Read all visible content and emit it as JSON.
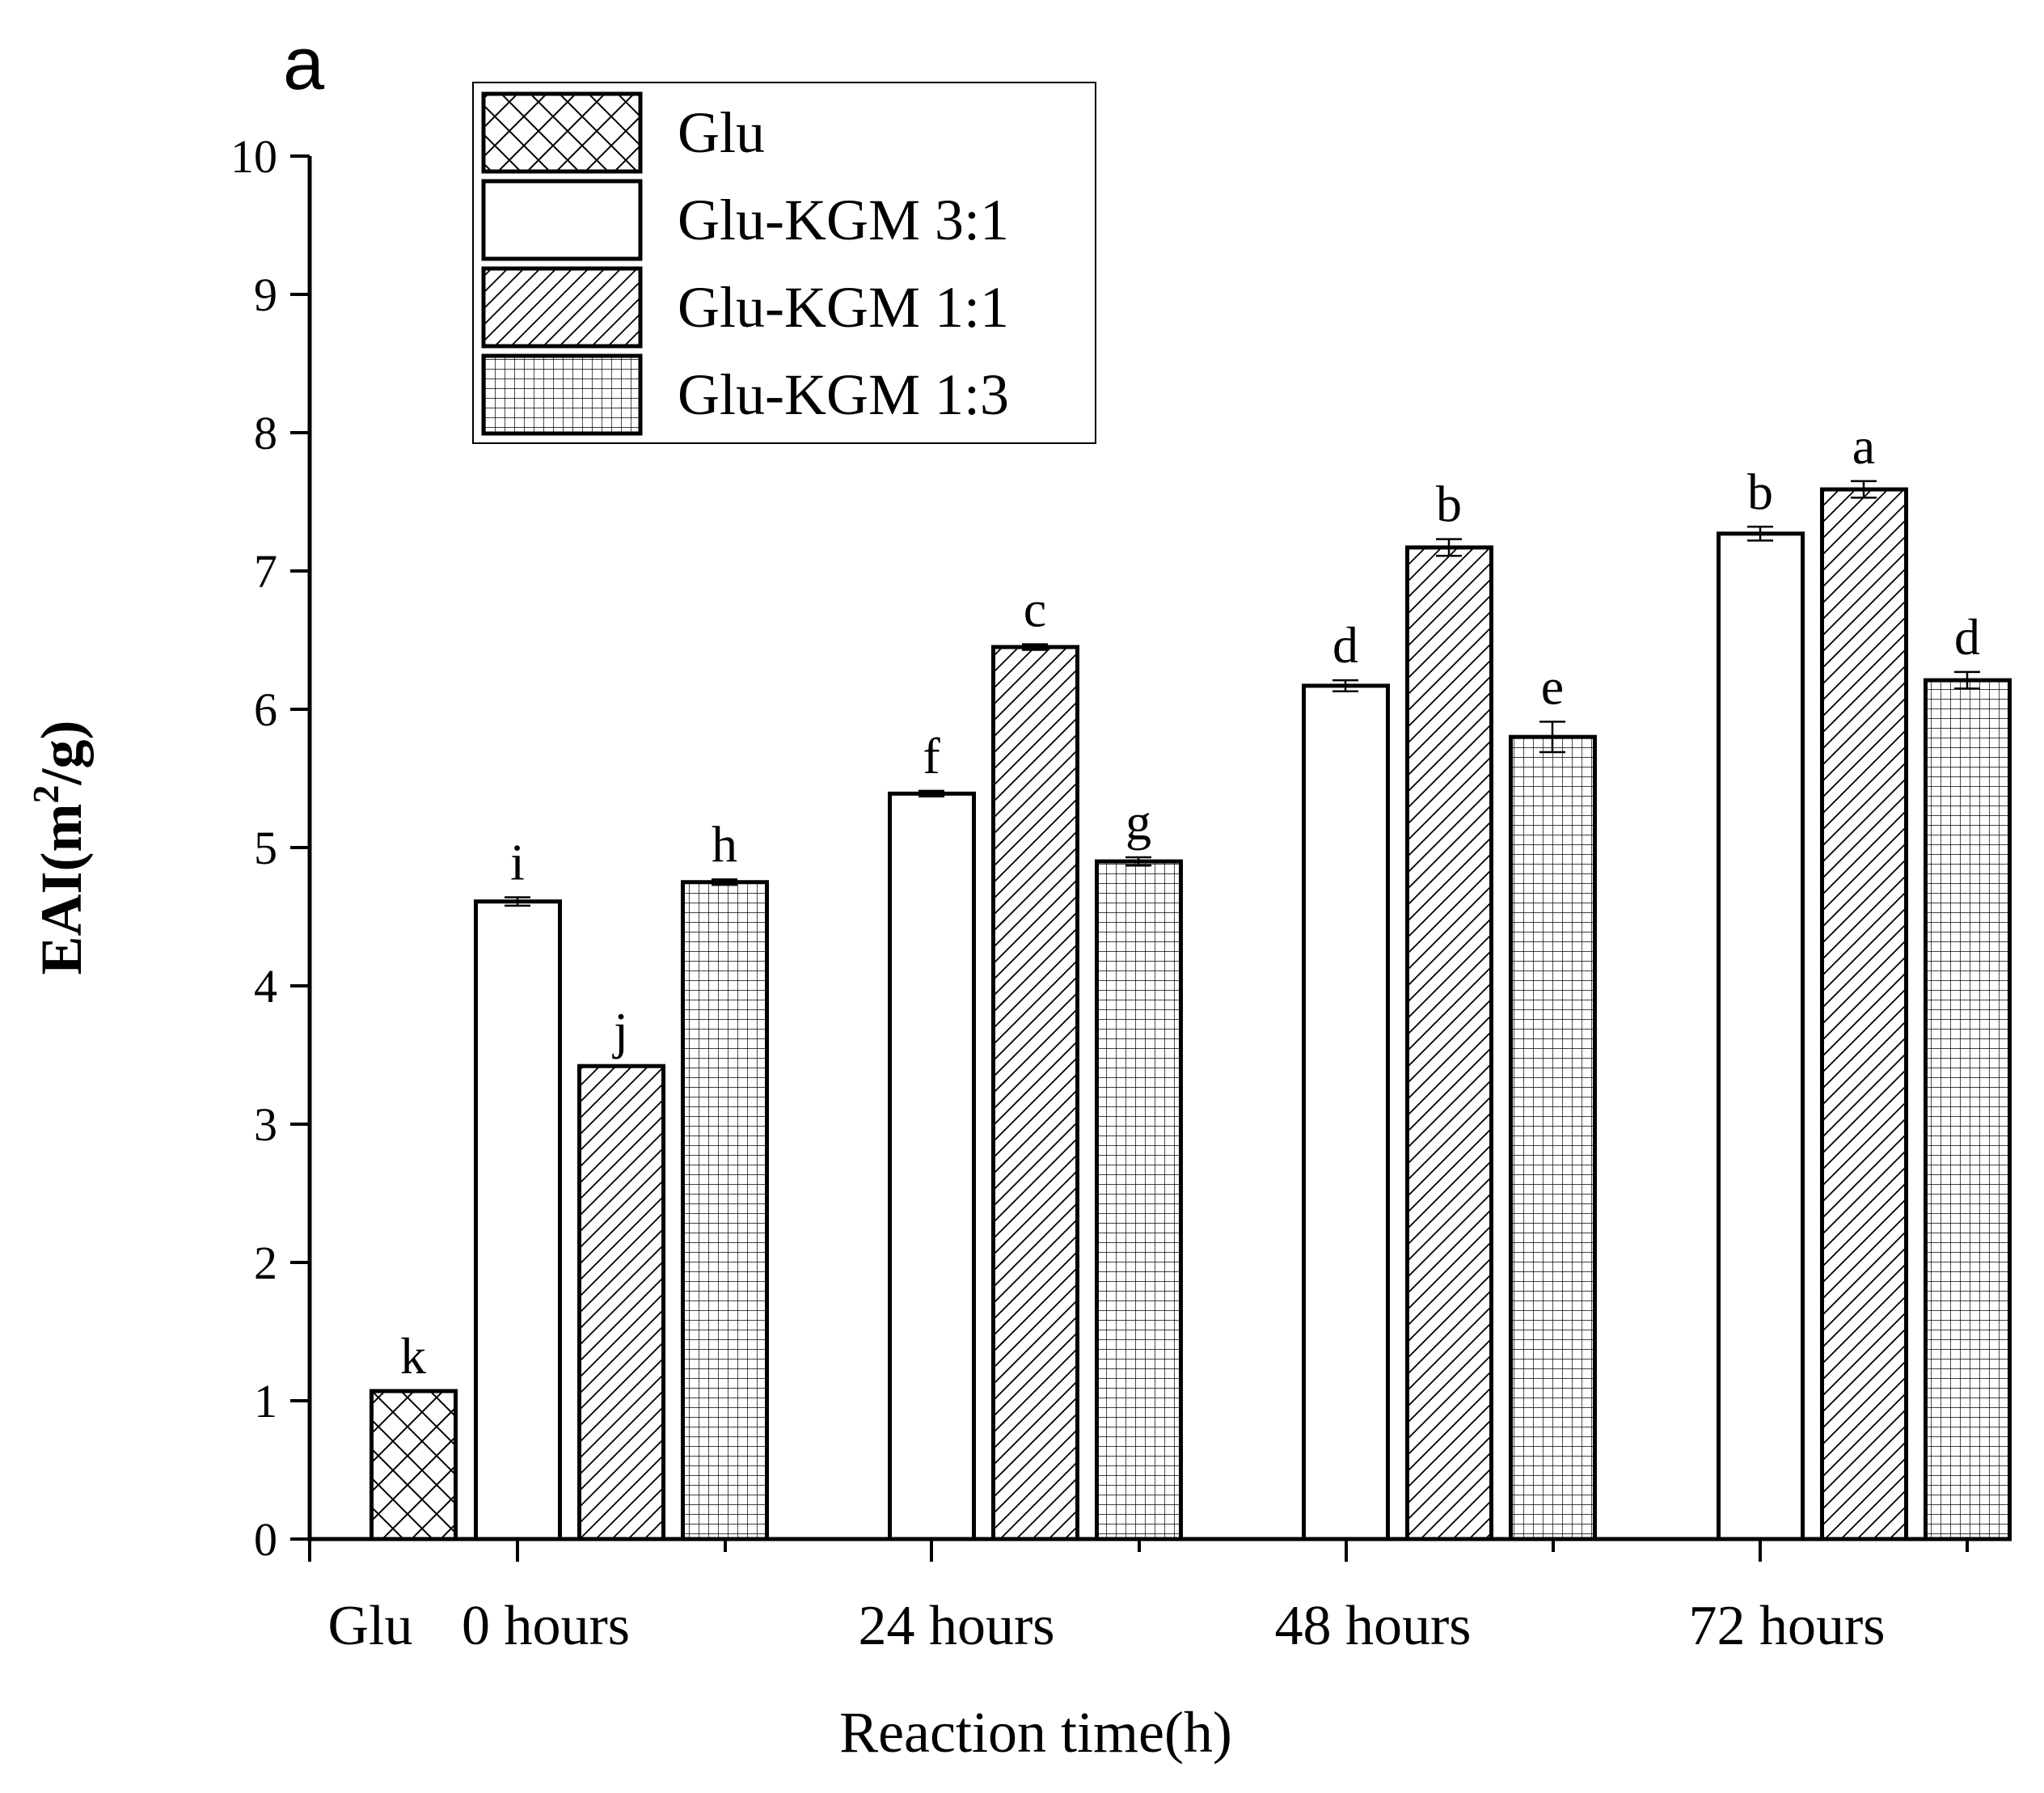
{
  "panel_label": "a",
  "chart_data": {
    "type": "bar",
    "title": "",
    "xlabel": "Reaction time(h)",
    "ylabel_main": "EAI(m",
    "ylabel_sup": "2",
    "ylabel_tail": "/g)",
    "ylim": [
      0,
      10
    ],
    "yticks": [
      0,
      1,
      2,
      3,
      4,
      5,
      6,
      7,
      8,
      9,
      10
    ],
    "grid": false,
    "legend_position": "top-left",
    "x_tick_labels": [
      "Glu",
      "0 hours",
      "24 hours",
      "48 hours",
      "72 hours"
    ],
    "series": [
      {
        "name": "Glu",
        "pattern": "crosshatch-diagonal",
        "groups": [
          "Glu"
        ],
        "values": [
          1.07
        ],
        "errors": [
          0
        ],
        "letters": [
          "k"
        ]
      },
      {
        "name": "Glu-KGM 3:1",
        "pattern": "none",
        "groups": [
          "0 hours",
          "24 hours",
          "48 hours",
          "72 hours"
        ],
        "values": [
          4.61,
          5.39,
          6.17,
          7.27
        ],
        "errors": [
          0.03,
          0.02,
          0.04,
          0.05
        ],
        "letters": [
          "i",
          "f",
          "d",
          "b"
        ]
      },
      {
        "name": "Glu-KGM 1:1",
        "pattern": "diagonal",
        "groups": [
          "0 hours",
          "24 hours",
          "48 hours",
          "72 hours"
        ],
        "values": [
          3.42,
          6.45,
          7.17,
          7.59
        ],
        "errors": [
          0.0,
          0.02,
          0.06,
          0.06
        ],
        "letters": [
          "j",
          "c",
          "b",
          "a"
        ]
      },
      {
        "name": "Glu-KGM 1:3",
        "pattern": "grid",
        "groups": [
          "0 hours",
          "24 hours",
          "48 hours",
          "72 hours"
        ],
        "values": [
          4.75,
          4.9,
          5.8,
          6.21
        ],
        "errors": [
          0.02,
          0.03,
          0.11,
          0.06
        ],
        "letters": [
          "h",
          "g",
          "e",
          "d"
        ]
      }
    ],
    "colors": {
      "axis": "#000000",
      "bar_fill": "#ffffff",
      "hatch": "#000000"
    }
  }
}
